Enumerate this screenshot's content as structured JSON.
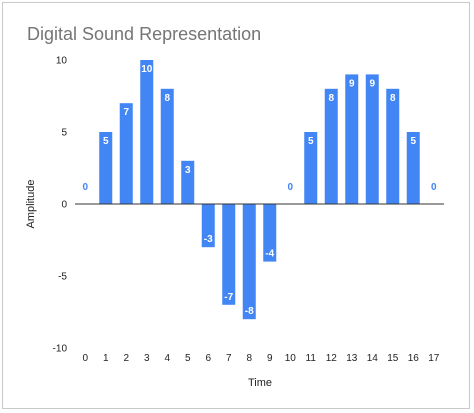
{
  "chart_data": {
    "type": "bar",
    "title": "Digital Sound Representation",
    "xlabel": "Time",
    "ylabel": "Amplitude",
    "categories": [
      "0",
      "1",
      "2",
      "3",
      "4",
      "5",
      "6",
      "7",
      "8",
      "9",
      "10",
      "11",
      "12",
      "13",
      "14",
      "15",
      "16",
      "17"
    ],
    "values": [
      0,
      5,
      7,
      10,
      8,
      3,
      -3,
      -7,
      -8,
      -4,
      0,
      5,
      8,
      9,
      9,
      8,
      5,
      0
    ],
    "ylim": [
      -10,
      10
    ],
    "yticks": [
      10,
      5,
      0,
      -5,
      -10
    ],
    "grid": false,
    "legend": "none",
    "bar_color": "#4285f4",
    "label_inside_color": "#ffffff",
    "label_outside_color": "#4285f4"
  }
}
